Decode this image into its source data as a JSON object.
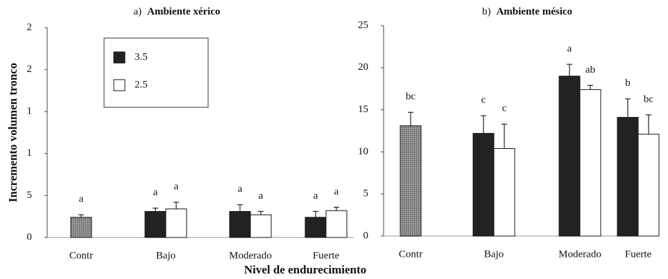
{
  "xlabel": "Nivel de endurecimiento",
  "chart_data": [
    {
      "type": "bar",
      "panel_label": "a)",
      "title": "Ambiente  xérico",
      "ylabel": "Incremento volumen tronco",
      "categories": [
        "Contr",
        "Bajo",
        "Moderado",
        "Fuerte"
      ],
      "ylim": [
        0,
        25
      ],
      "yticks": [
        0,
        5,
        {
          "value": 10,
          "label": "1"
        },
        {
          "value": 15,
          "label": "1"
        },
        {
          "value": 20,
          "label": "2"
        },
        {
          "value": 25,
          "label": "2"
        }
      ],
      "legend": true,
      "series": [
        {
          "color": "#8a8a8a",
          "hatched": true,
          "values": [
            2.4,
            null,
            null,
            null
          ],
          "errors": [
            0.3,
            null,
            null,
            null
          ],
          "letters": [
            "a",
            null,
            null,
            null
          ]
        },
        {
          "name": "3.5",
          "color": "#222222",
          "values": [
            null,
            3.1,
            3.1,
            2.4
          ],
          "errors": [
            null,
            0.4,
            0.8,
            0.7
          ],
          "letters": [
            null,
            "a",
            "a",
            "a"
          ]
        },
        {
          "name": "2.5",
          "color": "#ffffff",
          "values": [
            null,
            3.4,
            2.7,
            3.2
          ],
          "errors": [
            null,
            0.8,
            0.4,
            0.4
          ],
          "letters": [
            null,
            "a",
            "a",
            "a"
          ]
        }
      ]
    },
    {
      "type": "bar",
      "panel_label": "b)",
      "title": "Ambiente mésico",
      "categories": [
        "Contr",
        "Bajo",
        "Moderado",
        "Fuerte"
      ],
      "ylim": [
        0,
        25
      ],
      "yticks": [
        0,
        5,
        10,
        15,
        20,
        25
      ],
      "legend": false,
      "series": [
        {
          "color": "#8a8a8a",
          "hatched": true,
          "values": [
            13.1,
            null,
            null,
            null
          ],
          "errors": [
            1.6,
            null,
            null,
            null
          ],
          "letters": [
            "bc",
            null,
            null,
            null
          ]
        },
        {
          "name": "3.5",
          "color": "#222222",
          "values": [
            null,
            12.2,
            19.0,
            14.1
          ],
          "errors": [
            null,
            2.1,
            1.4,
            2.2
          ],
          "letters": [
            null,
            "c",
            "a",
            "b"
          ]
        },
        {
          "name": "2.5",
          "color": "#ffffff",
          "values": [
            null,
            10.4,
            17.4,
            12.1
          ],
          "errors": [
            null,
            2.9,
            0.5,
            2.3
          ],
          "letters": [
            null,
            "c",
            "ab",
            "bc"
          ]
        }
      ]
    }
  ]
}
